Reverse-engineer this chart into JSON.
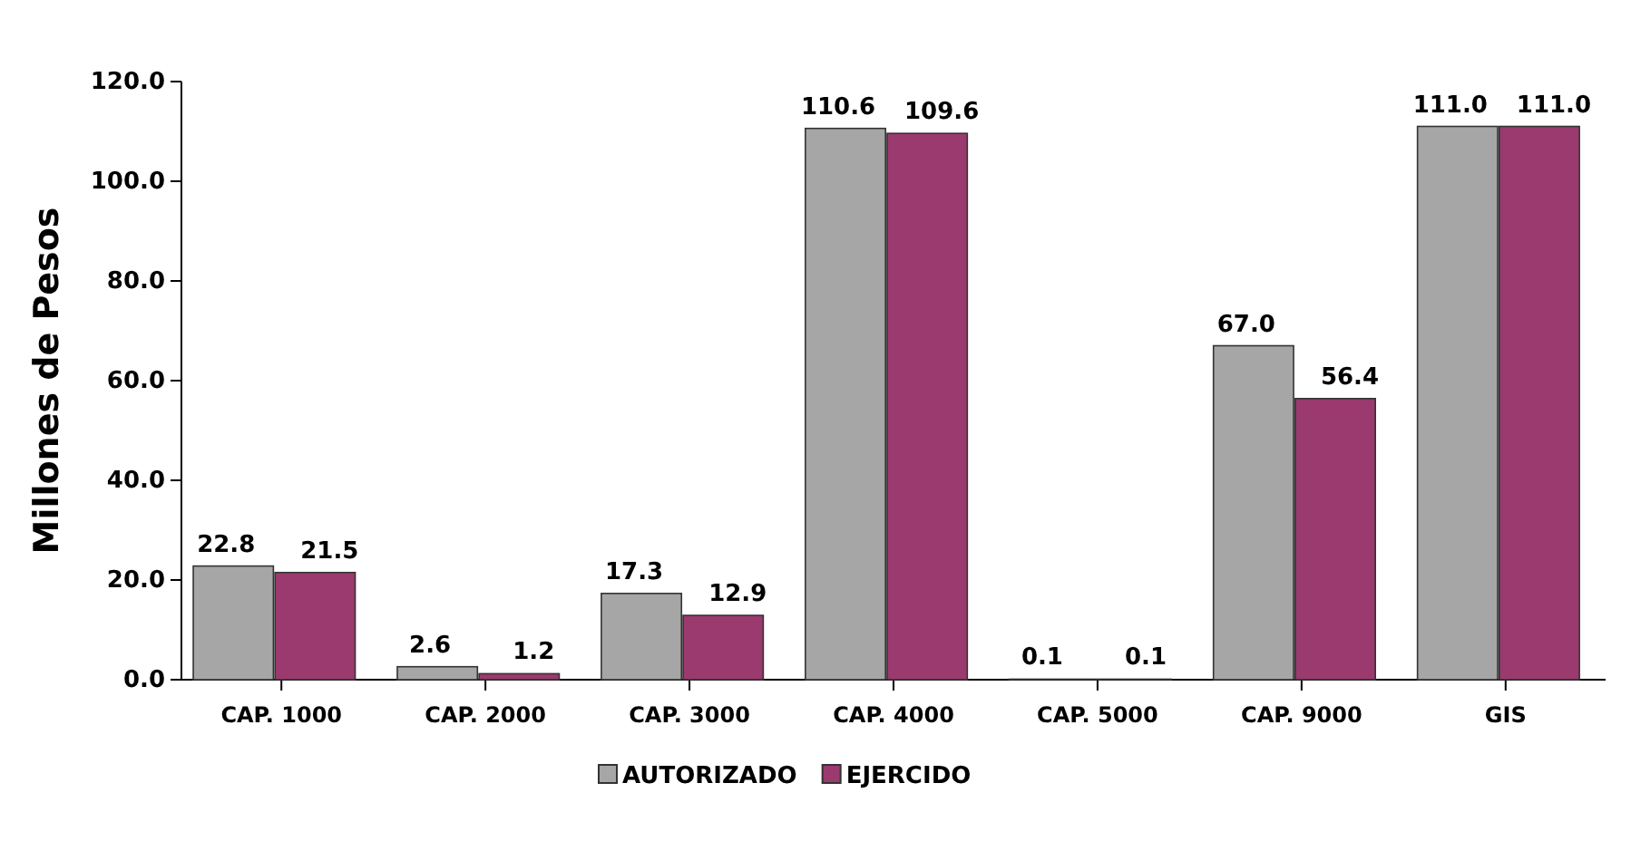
{
  "chart_data": {
    "type": "bar",
    "ylabel": "Millones de Pesos",
    "categories": [
      "CAP. 1000",
      "CAP. 2000",
      "CAP. 3000",
      "CAP. 4000",
      "CAP. 5000",
      "CAP. 9000",
      "GIS"
    ],
    "series": [
      {
        "name": "AUTORIZADO",
        "color": "#a6a6a6",
        "values": [
          22.8,
          2.6,
          17.3,
          110.6,
          0.1,
          67.0,
          111.0
        ],
        "value_labels": [
          "22.8",
          "2.6",
          "17.3",
          "110.6",
          "0.1",
          "67.0",
          "111.0"
        ]
      },
      {
        "name": "EJERCIDO",
        "color": "#9b3a6e",
        "values": [
          21.5,
          1.2,
          12.9,
          109.6,
          0.1,
          56.4,
          111.0
        ],
        "value_labels": [
          "21.5",
          "1.2",
          "12.9",
          "109.6",
          "0.1",
          "56.4",
          "111.0"
        ]
      }
    ],
    "ylim": [
      0,
      120
    ],
    "yticks": [
      {
        "value": 0,
        "label": "0.0"
      },
      {
        "value": 20,
        "label": "20.0"
      },
      {
        "value": 40,
        "label": "40.0"
      },
      {
        "value": 60,
        "label": "60.0"
      },
      {
        "value": 80,
        "label": "80.0"
      },
      {
        "value": 100,
        "label": "100.0"
      },
      {
        "value": 120,
        "label": "120.0"
      }
    ],
    "legend": "bottom"
  }
}
